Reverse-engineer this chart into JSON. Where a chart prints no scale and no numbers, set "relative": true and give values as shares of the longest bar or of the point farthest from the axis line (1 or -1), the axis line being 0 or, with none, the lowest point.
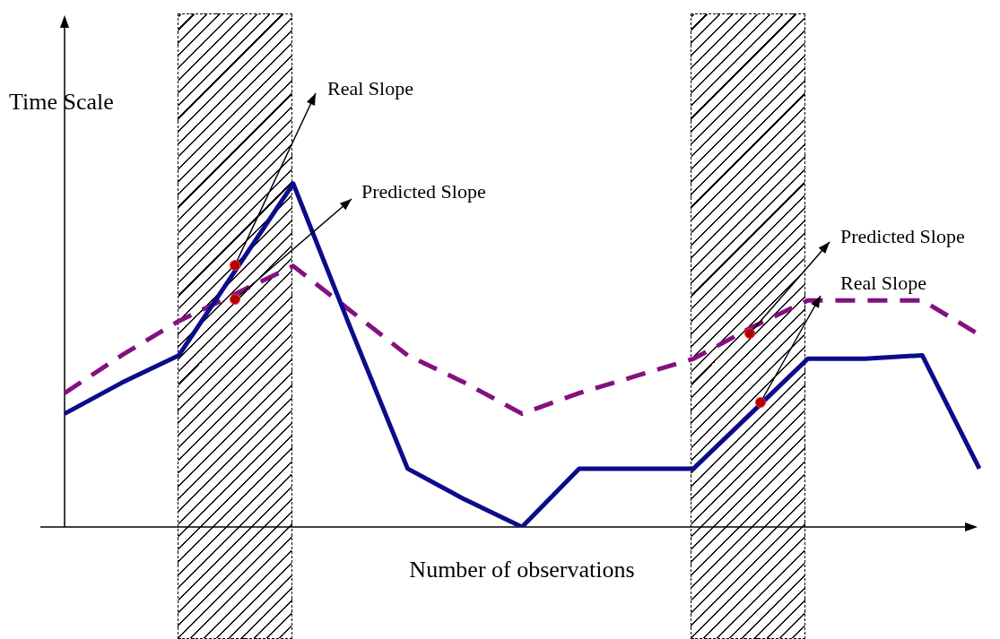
{
  "chart_data": {
    "type": "line",
    "relative": true,
    "tick_labels": false,
    "xlabel": "Number of observations",
    "ylabel": "Time Scale",
    "categories": [
      null,
      null,
      null,
      null,
      null,
      null,
      null,
      null,
      null,
      null,
      null,
      null,
      null,
      null,
      null,
      null,
      null
    ],
    "series": [
      {
        "type": "line",
        "color": "#0c0c8a",
        "line_style": "solid",
        "marker": "none",
        "values": [
          0.33,
          0.42,
          0.5,
          0.75,
          1,
          0.58,
          0.17,
          0.08,
          0,
          0.17,
          0.17,
          0.17,
          0.33,
          0.49,
          0.49,
          0.5,
          0.17
        ]
      },
      {
        "type": "line",
        "color": "#84117f",
        "line_style": "dashed",
        "marker": "none",
        "values": [
          0.39,
          0.5,
          0.6,
          0.68,
          0.76,
          0.63,
          0.5,
          0.42,
          0.33,
          0.39,
          0.44,
          0.49,
          0.58,
          0.66,
          0.66,
          0.66,
          0.56
        ]
      }
    ],
    "annotations": [
      "Real Slope",
      "Predicted Slope",
      "Predicted Slope",
      "Real Slope"
    ]
  }
}
